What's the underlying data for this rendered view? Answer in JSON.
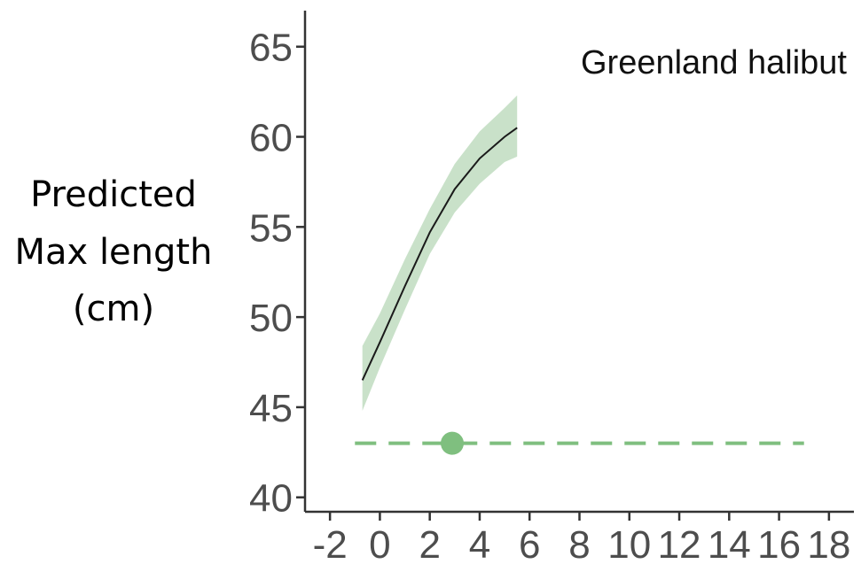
{
  "chart_data": {
    "type": "line",
    "title": "",
    "ylabel_lines": [
      "Predicted",
      "Max length",
      "(cm)"
    ],
    "xlabel": "",
    "annotation": "Greenland halibut",
    "xlim": [
      -3,
      19
    ],
    "ylim": [
      39.2,
      67
    ],
    "x_ticks": [
      -2,
      0,
      2,
      4,
      6,
      8,
      10,
      12,
      14,
      16,
      18
    ],
    "y_ticks": [
      40,
      45,
      50,
      55,
      60,
      65
    ],
    "grid": false,
    "colors": {
      "line": "#1a1a1a",
      "ribbon": "#a8cfa8",
      "reference": "#7fbf7f",
      "axis": "#333333",
      "tick_text": "#4d4d4d"
    },
    "series": [
      {
        "type": "line_with_ribbon",
        "x": [
          -0.7,
          0.0,
          1.0,
          2.0,
          3.0,
          4.0,
          5.0,
          5.5
        ],
        "y": [
          46.5,
          48.6,
          51.7,
          54.7,
          57.1,
          58.8,
          60.0,
          60.5
        ],
        "lower": [
          44.8,
          47.2,
          50.4,
          53.5,
          55.8,
          57.4,
          58.6,
          58.9
        ],
        "upper": [
          48.4,
          50.2,
          53.2,
          56.0,
          58.5,
          60.3,
          61.6,
          62.3
        ]
      }
    ],
    "reference_line": {
      "y": 43.0,
      "x_start": -1.0,
      "x_end": 17.0,
      "style": "dashed",
      "point": {
        "x": 2.9,
        "y": 43.0
      }
    }
  }
}
